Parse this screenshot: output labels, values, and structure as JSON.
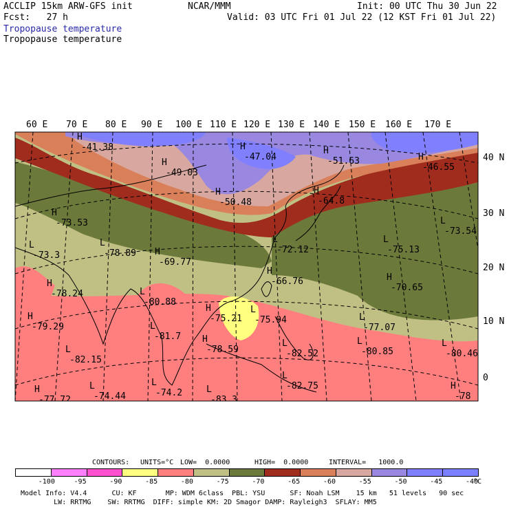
{
  "header": {
    "model": "ACCLIP 15km ARW-GFS init",
    "org": "NCAR/MMM",
    "init": "Init: 00 UTC Thu 30 Jun 22",
    "fcst": "Fcst:   27 h",
    "valid": "Valid: 03 UTC Fri 01 Jul 22 (12 KST Fri 01 Jul 22)",
    "field_label_shaded": "Tropopause temperature",
    "field_label_contour": "Tropopause temperature"
  },
  "map": {
    "lon_labels": [
      "60 E",
      "70 E",
      "80 E",
      "90 E",
      "100 E",
      "110 E",
      "120 E",
      "130 E",
      "140 E",
      "150 E",
      "160 E",
      "170 E"
    ],
    "lat_labels": [
      "40 N",
      "30 N",
      "20 N",
      "10 N",
      "0"
    ],
    "extrema": [
      {
        "type": "H",
        "value": "-41.38"
      },
      {
        "type": "H",
        "value": "-49.03"
      },
      {
        "type": "H",
        "value": "-47.04"
      },
      {
        "type": "H",
        "value": "-51.63"
      },
      {
        "type": "H",
        "value": "-46.55"
      },
      {
        "type": "H",
        "value": "-50.48"
      },
      {
        "type": "H",
        "value": "-64.8"
      },
      {
        "type": "H",
        "value": "-73.53"
      },
      {
        "type": "L",
        "value": "-73.54"
      },
      {
        "type": "L",
        "value": "-78.89"
      },
      {
        "type": "H",
        "value": "-69.77"
      },
      {
        "type": "L",
        "value": "-72.12"
      },
      {
        "type": "L",
        "value": "-75.13"
      },
      {
        "type": "L",
        "value": "-73.3"
      },
      {
        "type": "H",
        "value": "-66.76"
      },
      {
        "type": "H",
        "value": "-70.65"
      },
      {
        "type": "H",
        "value": "-78.24"
      },
      {
        "type": "L",
        "value": "-80.88"
      },
      {
        "type": "H",
        "value": "-75.21"
      },
      {
        "type": "L",
        "value": "-75.94"
      },
      {
        "type": "L",
        "value": "-77.07"
      },
      {
        "type": "H",
        "value": "-79.29"
      },
      {
        "type": "L",
        "value": "-81.7"
      },
      {
        "type": "L",
        "value": "-82.15"
      },
      {
        "type": "H",
        "value": "-78.59"
      },
      {
        "type": "L",
        "value": "-82.52"
      },
      {
        "type": "L",
        "value": "-80.85"
      },
      {
        "type": "L",
        "value": "-80.46"
      },
      {
        "type": "H",
        "value": "-77.72"
      },
      {
        "type": "L",
        "value": "-74.44"
      },
      {
        "type": "L",
        "value": "-74.2"
      },
      {
        "type": "L",
        "value": "-83.3"
      },
      {
        "type": "L",
        "value": "-82.75"
      },
      {
        "type": "H",
        "value": "-78"
      }
    ]
  },
  "contours": {
    "label": "CONTOURS:",
    "units": "UNITS=°C",
    "low": "LOW=  0.0000",
    "high": "HIGH=  0.0000",
    "interval": "INTERVAL=   1000.0"
  },
  "colorbar": {
    "ticks": [
      "-100",
      "-95",
      "-90",
      "-85",
      "-80",
      "-75",
      "-70",
      "-65",
      "-60",
      "-55",
      "-50",
      "-45",
      "-40"
    ],
    "unit": "°C",
    "colors": [
      "#ffffff",
      "#ff80ff",
      "#ff50d0",
      "#ffff80",
      "#ff7f7f",
      "#c0c084",
      "#6b7a3a",
      "#a02c1e",
      "#d9805a",
      "#d8a8a0",
      "#9a88e0",
      "#8080ff",
      "#7a80ff"
    ]
  },
  "footer": {
    "line1": "Model Info: V4.4      CU: KF       MP: WDM 6class  PBL: YSU      SF: Noah LSM    15 km   51 levels   90 sec",
    "line2": "        LW: RRTMG    SW: RRTMG  DIFF: simple KM: 2D Smagor DAMP: Rayleigh3  SFLAY: MM5"
  }
}
